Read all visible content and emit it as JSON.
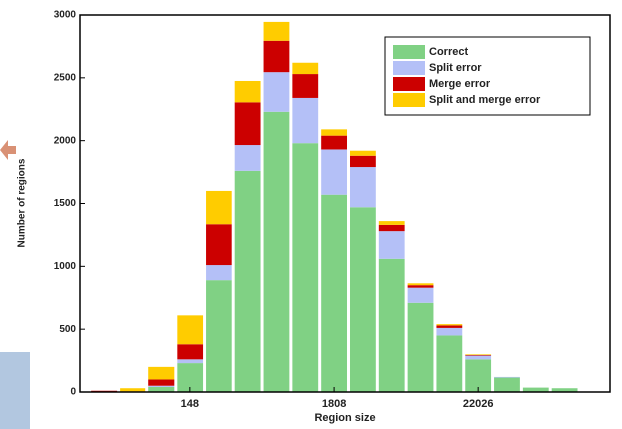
{
  "chart_data": {
    "type": "histogram",
    "x_label": "Region size",
    "y_label": "Number of regions",
    "x_log": true,
    "bins": [
      26,
      43,
      70,
      116,
      191,
      314,
      518,
      854,
      1408,
      2322,
      3828,
      6311,
      10405,
      17154,
      28283,
      46630,
      76879,
      126753
    ],
    "series": [
      {
        "name": "Correct",
        "color": "#80d184",
        "values": [
          0,
          0,
          40,
          230,
          890,
          1760,
          2230,
          1980,
          1570,
          1470,
          1060,
          710,
          450,
          260,
          115,
          35,
          30
        ]
      },
      {
        "name": "Split error",
        "color": "#b4c0f7",
        "values": [
          0,
          0,
          10,
          30,
          120,
          205,
          315,
          360,
          360,
          320,
          220,
          120,
          60,
          30,
          5,
          0,
          0
        ]
      },
      {
        "name": "Merge error",
        "color": "#cc0000",
        "values": [
          10,
          5,
          50,
          120,
          325,
          340,
          250,
          190,
          110,
          90,
          50,
          20,
          20,
          5,
          0,
          0,
          0
        ]
      },
      {
        "name": "Split and merge error",
        "color": "#ffcc00",
        "values": [
          0,
          25,
          100,
          230,
          265,
          170,
          150,
          90,
          50,
          40,
          30,
          15,
          10,
          5,
          0,
          0,
          0
        ]
      }
    ],
    "xlim": [
      22,
      217000
    ],
    "xticks": [
      148,
      1808,
      22026
    ],
    "ylim": [
      0,
      3000
    ],
    "yticks": [
      0,
      500,
      1000,
      1500,
      2000,
      2500,
      3000
    ],
    "legend": "top-right"
  }
}
